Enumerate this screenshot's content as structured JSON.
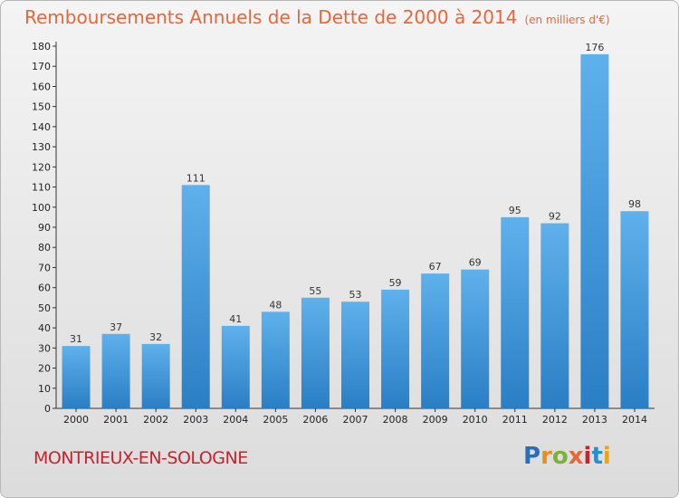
{
  "chart_data": {
    "type": "bar",
    "title": "Remboursements Annuels de la Dette de 2000 à 2014",
    "unit": "(en milliers d'€)",
    "categories": [
      "2000",
      "2001",
      "2002",
      "2003",
      "2004",
      "2005",
      "2006",
      "2007",
      "2008",
      "2009",
      "2010",
      "2011",
      "2012",
      "2013",
      "2014"
    ],
    "values": [
      31,
      37,
      32,
      111,
      41,
      48,
      55,
      53,
      59,
      67,
      69,
      95,
      92,
      176,
      98
    ],
    "ylim": [
      0,
      180
    ],
    "ytick_step": 10,
    "grid": false,
    "bar_color": "#3a8fd6",
    "xlabel": "",
    "ylabel": ""
  },
  "footer": {
    "commune": "MONTRIEUX-EN-SOLOGNE",
    "logo": "Proxiti"
  }
}
